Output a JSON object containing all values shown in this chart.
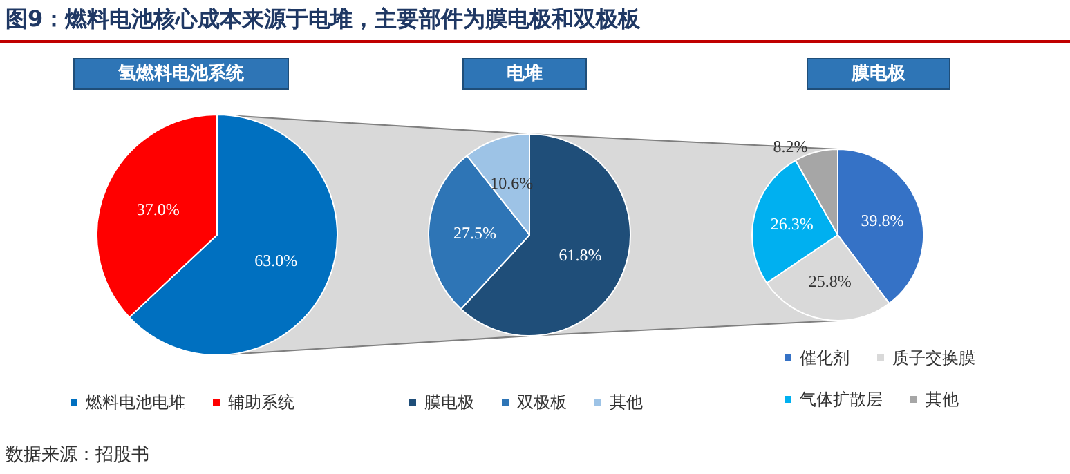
{
  "chart_data": [
    {
      "type": "pie",
      "title": "氢燃料电池系统",
      "categories": [
        "燃料电池电堆",
        "辅助系统"
      ],
      "values": [
        63.0,
        37.0
      ],
      "colors": [
        "#0070c0",
        "#ff0000"
      ],
      "value_labels": [
        "63.0%",
        "37.0%"
      ],
      "legend": "bottom",
      "annotations": [
        "图9：燃料电池核心成本来源于电堆，主要部件为膜电极和双极板",
        "数据来源：招股书"
      ]
    },
    {
      "type": "pie",
      "title": "电堆",
      "categories": [
        "膜电极",
        "双极板",
        "其他"
      ],
      "values": [
        61.8,
        27.5,
        10.6
      ],
      "colors": [
        "#1f4e79",
        "#2e75b6",
        "#9dc3e6"
      ],
      "value_labels": [
        "61.8%",
        "27.5%",
        "10.6%"
      ],
      "legend": "bottom"
    },
    {
      "type": "pie",
      "title": "膜电极",
      "categories": [
        "催化剂",
        "质子交换膜",
        "气体扩散层",
        "其他"
      ],
      "values": [
        39.8,
        25.8,
        26.3,
        8.2
      ],
      "colors": [
        "#3572c6",
        "#d9d9d9",
        "#00b0f0",
        "#a6a6a6"
      ],
      "value_labels": [
        "39.8%",
        "25.8%",
        "26.3%",
        "8.2%"
      ],
      "legend": "bottom"
    }
  ]
}
